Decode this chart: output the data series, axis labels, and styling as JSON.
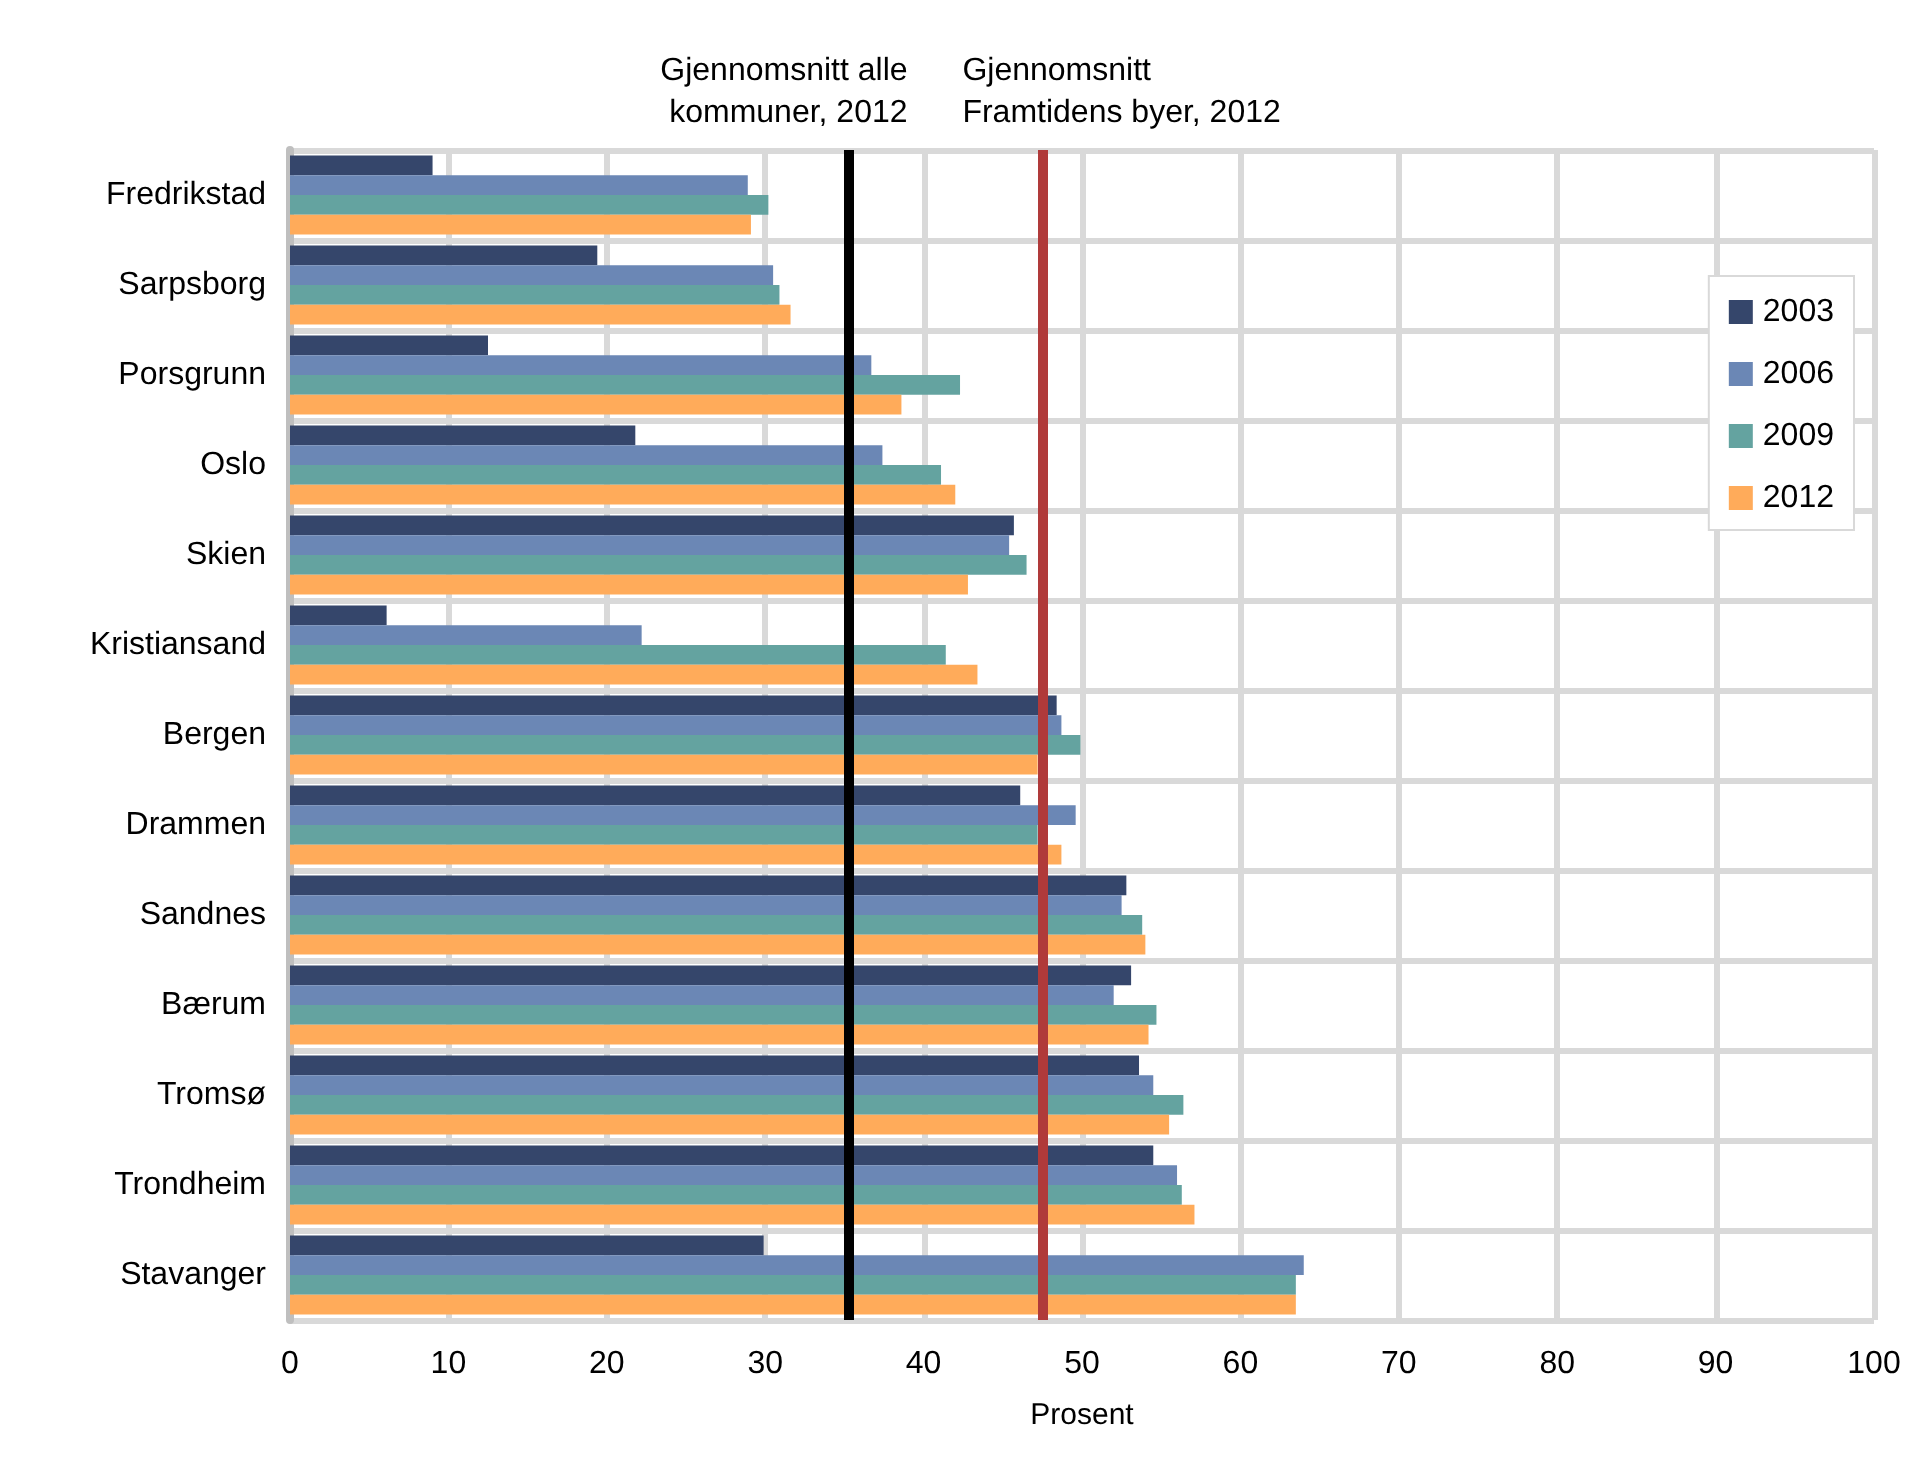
{
  "chart_data": {
    "type": "bar",
    "orientation": "horizontal",
    "xlabel": "Prosent",
    "categories": [
      "Fredrikstad",
      "Sarpsborg",
      "Porsgrunn",
      "Oslo",
      "Skien",
      "Kristiansand",
      "Bergen",
      "Drammen",
      "Sandnes",
      "Bærum",
      "Tromsø",
      "Trondheim",
      "Stavanger"
    ],
    "series": [
      {
        "name": "2003",
        "color": "#35466b",
        "values": [
          9.0,
          19.4,
          12.5,
          21.8,
          45.7,
          6.1,
          48.4,
          46.1,
          52.8,
          53.1,
          53.6,
          54.5,
          29.9
        ]
      },
      {
        "name": "2006",
        "color": "#6b87b5",
        "values": [
          28.9,
          30.5,
          36.7,
          37.4,
          45.4,
          22.2,
          48.7,
          49.6,
          52.5,
          52.0,
          54.5,
          56.0,
          64.0
        ]
      },
      {
        "name": "2009",
        "color": "#64a3a0",
        "values": [
          30.2,
          30.9,
          42.3,
          41.1,
          46.5,
          41.4,
          49.9,
          47.2,
          53.8,
          54.7,
          56.4,
          56.3,
          63.5
        ]
      },
      {
        "name": "2012",
        "color": "#ffab5a",
        "values": [
          29.1,
          31.6,
          38.6,
          42.0,
          42.8,
          43.4,
          47.2,
          48.7,
          54.0,
          54.2,
          55.5,
          57.1,
          63.5
        ]
      }
    ],
    "xlim": [
      0,
      100
    ],
    "xticks": [
      0,
      10,
      20,
      30,
      40,
      50,
      60,
      70,
      80,
      90,
      100
    ],
    "ref_lines": [
      {
        "axis": "x",
        "value": 35.2,
        "label": "Gjennomsnitt alle\nkommuner, 2012",
        "color": "#000000"
      },
      {
        "axis": "x",
        "value": 47.5,
        "label": "Gjennomsnitt\nFramtidens byer, 2012",
        "color": "#b03a3a"
      }
    ],
    "grid": true,
    "legend": "top right"
  }
}
